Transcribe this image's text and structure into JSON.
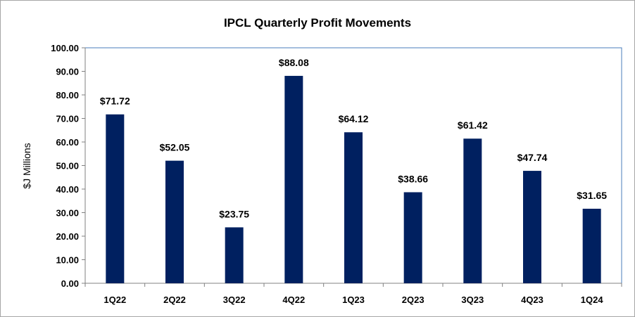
{
  "chart_data": {
    "type": "bar",
    "title": "IPCL Quarterly Profit Movements",
    "xlabel": "",
    "ylabel": "$J Millions",
    "categories": [
      "1Q22",
      "2Q22",
      "3Q22",
      "4Q22",
      "1Q23",
      "2Q23",
      "3Q23",
      "4Q23",
      "1Q24"
    ],
    "values": [
      71.72,
      52.05,
      23.75,
      88.08,
      64.12,
      38.66,
      61.42,
      47.74,
      31.65
    ],
    "data_labels": [
      "$71.72",
      "$52.05",
      "$23.75",
      "$88.08",
      "$64.12",
      "$38.66",
      "$61.42",
      "$47.74",
      "$31.65"
    ],
    "ylim": [
      0,
      100
    ],
    "yticks": [
      0,
      10,
      20,
      30,
      40,
      50,
      60,
      70,
      80,
      90,
      100
    ],
    "ytick_labels": [
      "0.00",
      "10.00",
      "20.00",
      "30.00",
      "40.00",
      "50.00",
      "60.00",
      "70.00",
      "80.00",
      "90.00",
      "100.00"
    ],
    "grid": false,
    "legend": "none",
    "colors": {
      "bar": "#002060",
      "plot_border": "#4a7ebb",
      "axis": "#808080",
      "frame": "#a6a6a6"
    }
  }
}
